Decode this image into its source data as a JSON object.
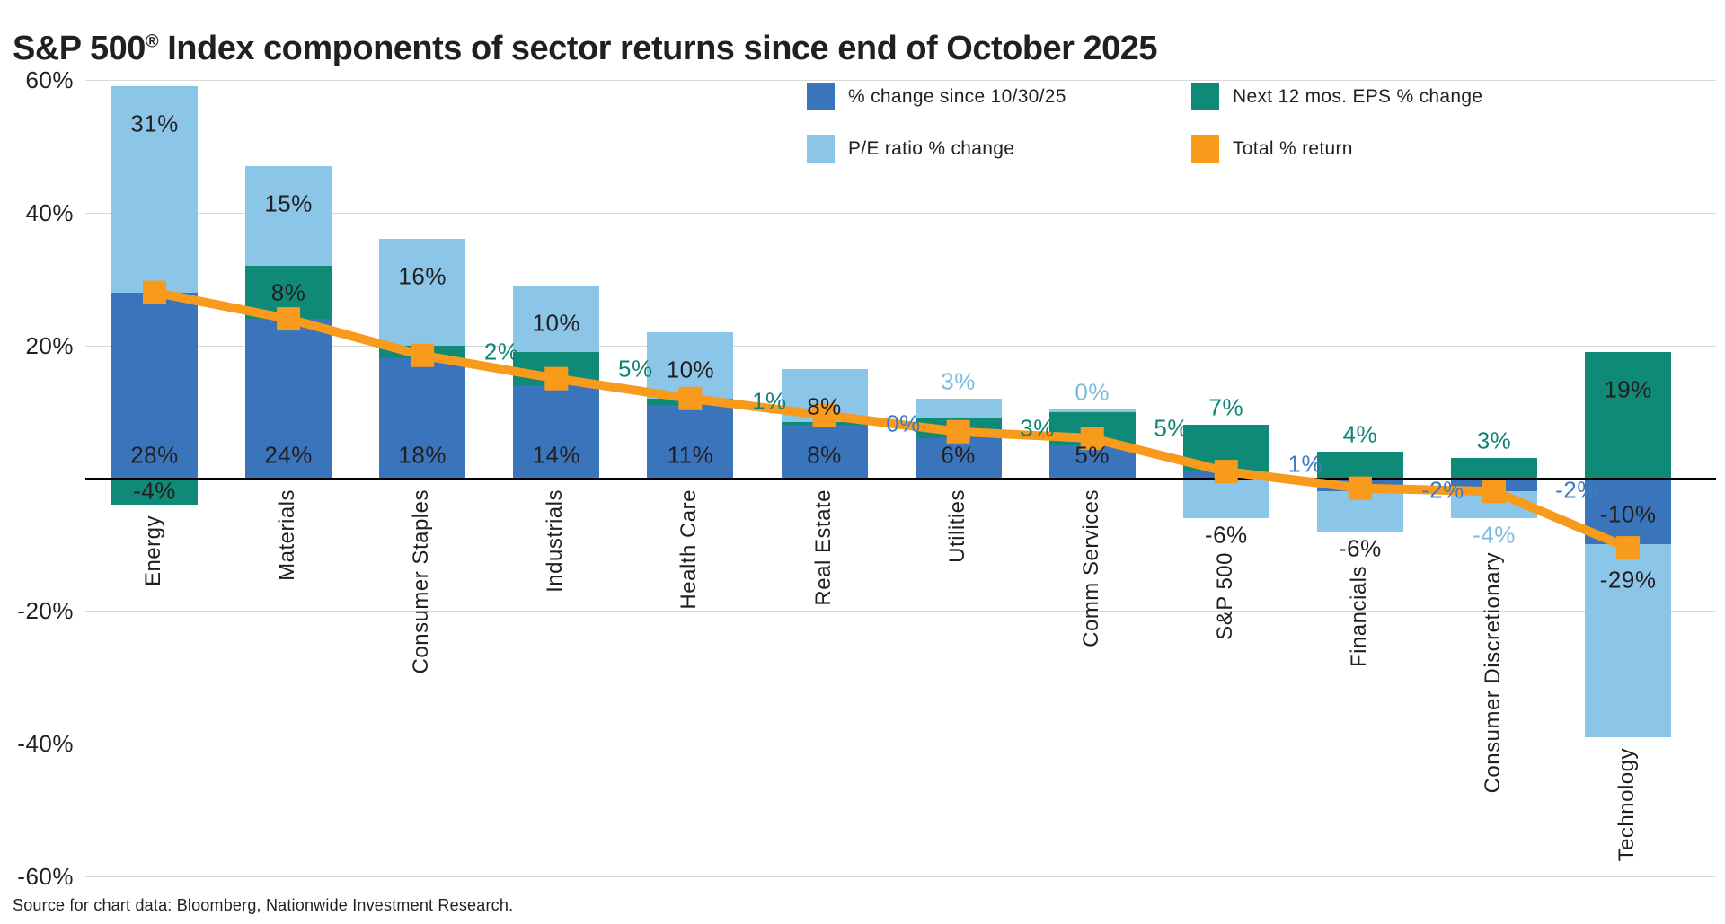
{
  "title": {
    "pre": "S&P 500",
    "sup": "®",
    "post": " Index components of sector returns since end of October 2025"
  },
  "source": "Source for chart data: Bloomberg, Nationwide Investment Research.",
  "colors": {
    "price": "#3A75BC",
    "eps": "#0F8A77",
    "pe": "#8BC5E8",
    "total": "#F89B1C",
    "text": "#231F20",
    "grid": "#D9D9D9",
    "label_teal": "#0F8376",
    "label_blue": "#3D7CC4",
    "label_lightblue": "#7CBCDE"
  },
  "legend": {
    "items": [
      {
        "key": "price",
        "label": "% change since 10/30/25"
      },
      {
        "key": "eps",
        "label": "Next 12 mos. EPS % change"
      },
      {
        "key": "pe",
        "label": "P/E ratio % change"
      },
      {
        "key": "total",
        "label": "Total % return"
      }
    ]
  },
  "chart_data": {
    "type": "bar",
    "subtype": "stacked-bars-with-line-overlay",
    "categories": [
      "Energy",
      "Materials",
      "Consumer Staples",
      "Industrials",
      "Health Care",
      "Real Estate",
      "Utilities",
      "Comm Services",
      "S&P 500",
      "Financials",
      "Consumer Discretionary",
      "Technology"
    ],
    "series": [
      {
        "name": "% change since 10/30/25",
        "key": "price",
        "values": [
          28,
          24,
          18,
          14,
          11,
          8,
          6,
          5,
          1,
          -2,
          -2,
          -10
        ]
      },
      {
        "name": "Next 12 mos. EPS % change",
        "key": "eps",
        "values": [
          -4,
          8,
          2,
          5,
          1,
          0.4,
          3,
          5,
          7,
          4,
          3,
          19
        ]
      },
      {
        "name": "P/E ratio % change",
        "key": "pe",
        "values": [
          31,
          15,
          16,
          10,
          10,
          8,
          3,
          0.4,
          -6,
          -6,
          -4,
          -29
        ]
      }
    ],
    "line": {
      "name": "Total % return",
      "values": [
        28,
        24,
        18.5,
        15,
        12,
        9.5,
        7,
        6,
        1,
        -1.5,
        -2,
        -10.5
      ]
    },
    "value_labels": [
      [
        {
          "series": "price",
          "text": "28%",
          "place": "inside-bottom",
          "color": "dark"
        },
        {
          "series": "eps",
          "text": "-4%",
          "place": "inside-neg-center",
          "color": "dark"
        },
        {
          "series": "pe",
          "text": "31%",
          "place": "inside-top",
          "color": "dark"
        }
      ],
      [
        {
          "series": "price",
          "text": "24%",
          "place": "inside-bottom",
          "color": "dark"
        },
        {
          "series": "eps",
          "text": "8%",
          "place": "inside-mid",
          "color": "dark"
        },
        {
          "series": "pe",
          "text": "15%",
          "place": "inside-top",
          "color": "dark"
        }
      ],
      [
        {
          "series": "price",
          "text": "18%",
          "place": "inside-bottom",
          "color": "dark"
        },
        {
          "series": "eps",
          "text": "2%",
          "place": "right-mid",
          "color": "teal"
        },
        {
          "series": "pe",
          "text": "16%",
          "place": "inside-top",
          "color": "dark"
        }
      ],
      [
        {
          "series": "price",
          "text": "14%",
          "place": "inside-bottom",
          "color": "dark"
        },
        {
          "series": "eps",
          "text": "5%",
          "place": "right-mid",
          "color": "teal"
        },
        {
          "series": "pe",
          "text": "10%",
          "place": "inside-top",
          "color": "dark"
        }
      ],
      [
        {
          "series": "price",
          "text": "11%",
          "place": "inside-bottom",
          "color": "dark"
        },
        {
          "series": "eps",
          "text": "1%",
          "place": "right-mid",
          "color": "teal"
        },
        {
          "series": "pe",
          "text": "10%",
          "place": "inside-top",
          "color": "dark"
        }
      ],
      [
        {
          "series": "price",
          "text": "8%",
          "place": "inside-bottom",
          "color": "dark"
        },
        {
          "series": "eps",
          "text": "0%",
          "place": "right-mid",
          "color": "blue"
        },
        {
          "series": "pe",
          "text": "8%",
          "place": "inside-top",
          "color": "dark"
        }
      ],
      [
        {
          "series": "price",
          "text": "6%",
          "place": "inside-bottom",
          "color": "dark"
        },
        {
          "series": "eps",
          "text": "3%",
          "place": "right-mid",
          "color": "teal"
        },
        {
          "series": "pe",
          "text": "3%",
          "place": "above",
          "color": "lightblue"
        }
      ],
      [
        {
          "series": "price",
          "text": "5%",
          "place": "inside-bottom",
          "color": "dark"
        },
        {
          "series": "eps",
          "text": "5%",
          "place": "right-mid",
          "color": "teal"
        },
        {
          "series": "pe",
          "text": "0%",
          "place": "above",
          "color": "lightblue"
        }
      ],
      [
        {
          "series": "price",
          "text": "1%",
          "place": "right-axis",
          "color": "blue"
        },
        {
          "series": "eps",
          "text": "7%",
          "place": "above",
          "color": "teal"
        },
        {
          "series": "pe",
          "text": "-6%",
          "place": "below",
          "color": "dark"
        }
      ],
      [
        {
          "series": "price",
          "text": "-2%",
          "place": "right-below",
          "color": "blue"
        },
        {
          "series": "eps",
          "text": "4%",
          "place": "above",
          "color": "teal"
        },
        {
          "series": "pe",
          "text": "-6%",
          "place": "below",
          "color": "dark"
        }
      ],
      [
        {
          "series": "price",
          "text": "-2%",
          "place": "right-below",
          "color": "blue"
        },
        {
          "series": "eps",
          "text": "3%",
          "place": "above",
          "color": "teal"
        },
        {
          "series": "pe",
          "text": "-4%",
          "place": "below",
          "color": "lightblue"
        }
      ],
      [
        {
          "series": "price",
          "text": "-10%",
          "place": "inside-neg-top",
          "color": "dark"
        },
        {
          "series": "eps",
          "text": "19%",
          "place": "inside-top",
          "color": "dark"
        },
        {
          "series": "pe",
          "text": "-29%",
          "place": "inside-neg-top",
          "color": "dark"
        }
      ]
    ],
    "ylim": [
      -60,
      60
    ],
    "y_ticks": [
      {
        "v": 60,
        "label": "60%"
      },
      {
        "v": 40,
        "label": "40%"
      },
      {
        "v": 20,
        "label": "20%"
      },
      {
        "v": -20,
        "label": "-20%"
      },
      {
        "v": -40,
        "label": "-40%"
      },
      {
        "v": -60,
        "label": "-60%"
      }
    ],
    "grid": true,
    "legend_position": "top-right"
  }
}
